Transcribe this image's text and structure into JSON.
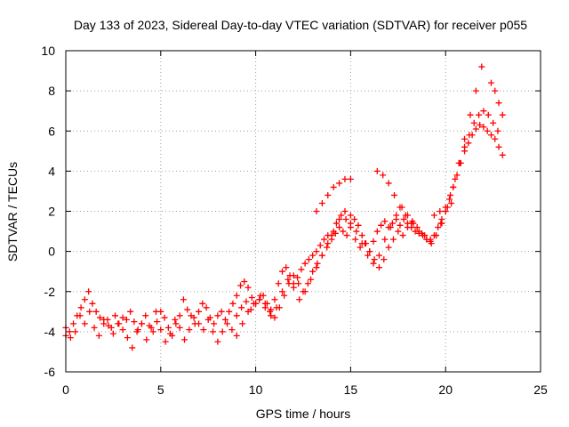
{
  "chart_data": {
    "type": "scatter",
    "title": "Day 133 of 2023, Sidereal Day-to-day VTEC variation (SDTVAR) for receiver p055",
    "xlabel": "GPS time / hours",
    "ylabel": "SDTVAR / TECUs",
    "xlim": [
      0,
      25
    ],
    "ylim": [
      -6,
      10
    ],
    "xticks": [
      "0",
      "5",
      "10",
      "15",
      "20",
      "25"
    ],
    "yticks": [
      "-6",
      "-4",
      "-2",
      "0",
      "2",
      "4",
      "6",
      "8",
      "10"
    ],
    "grid": true,
    "marker": "plus",
    "color": "#ff0000",
    "series": [
      {
        "x": [
          0.0,
          0.2,
          0.4,
          0.6,
          0.8,
          1.0,
          1.2,
          1.4,
          1.6,
          1.8,
          2.0,
          2.2,
          2.4,
          2.6,
          2.8,
          3.0,
          3.2,
          3.4,
          3.6,
          3.8,
          4.0,
          4.2,
          4.4,
          4.6,
          4.8,
          5.0,
          5.2,
          5.4,
          5.6,
          5.8,
          6.0,
          6.2,
          6.4,
          6.6,
          6.8,
          7.0,
          7.2,
          7.4,
          7.6,
          7.8,
          8.0,
          8.2,
          8.4,
          8.6,
          8.8,
          9.0,
          9.2,
          9.4,
          9.6,
          9.8,
          10.0,
          10.2,
          10.4,
          10.6,
          10.8,
          11.0,
          11.2,
          11.4,
          11.6,
          11.8,
          12.0,
          12.2,
          12.4,
          12.6,
          12.8,
          13.0,
          13.2,
          13.4,
          13.6,
          13.8,
          14.0,
          14.2,
          14.4,
          14.6,
          14.8,
          15.0,
          15.2,
          15.4,
          15.6,
          15.8,
          16.0,
          16.2,
          16.4,
          16.6,
          16.8,
          17.0,
          17.2,
          17.4,
          17.6,
          17.8,
          18.0,
          18.2,
          18.4,
          18.6,
          18.8,
          19.0,
          19.2,
          19.4,
          19.6,
          19.8,
          20.0,
          20.2,
          20.4,
          20.6,
          20.8,
          21.0,
          21.2,
          21.4,
          21.6,
          21.8,
          22.0,
          22.2,
          22.4,
          22.6,
          22.8,
          23.0
        ],
        "y": [
          -4.2,
          -4.0,
          -3.6,
          -3.2,
          -2.8,
          -2.4,
          -2.0,
          -2.6,
          -3.0,
          -3.3,
          -3.6,
          -3.4,
          -3.8,
          -3.2,
          -3.6,
          -3.9,
          -3.4,
          -3.0,
          -3.5,
          -3.9,
          -3.6,
          -3.2,
          -3.7,
          -4.0,
          -3.5,
          -3.0,
          -3.3,
          -3.8,
          -4.2,
          -3.6,
          -3.2,
          -2.4,
          -2.9,
          -3.2,
          -3.6,
          -3.0,
          -2.6,
          -2.8,
          -3.3,
          -3.6,
          -3.2,
          -3.0,
          -3.4,
          -3.0,
          -2.6,
          -2.2,
          -1.7,
          -1.5,
          -1.8,
          -2.3,
          -2.6,
          -2.4,
          -2.2,
          -2.6,
          -2.9,
          -2.4,
          -1.6,
          -1.0,
          -0.8,
          -1.2,
          -1.6,
          -1.3,
          -0.9,
          -0.6,
          -0.4,
          -0.2,
          0.0,
          0.3,
          0.6,
          0.8,
          0.6,
          0.9,
          1.2,
          1.0,
          0.8,
          1.4,
          1.6,
          1.3,
          0.8,
          0.4,
          0.0,
          0.5,
          1.0,
          1.3,
          1.5,
          1.2,
          1.4,
          1.6,
          1.3,
          1.6,
          1.4,
          1.2,
          1.0,
          0.9,
          0.8,
          0.6,
          0.5,
          0.8,
          1.2,
          1.6,
          2.0,
          2.6,
          3.2,
          3.8,
          4.4,
          5.0,
          5.4,
          5.8,
          6.1,
          6.3,
          6.2,
          6.0,
          5.8,
          5.6,
          5.2,
          4.8
        ]
      },
      {
        "x": [
          0.0,
          0.25,
          0.5,
          0.75,
          1.0,
          1.25,
          1.5,
          1.75,
          2.0,
          2.25,
          2.5,
          2.75,
          3.0,
          3.25,
          3.5,
          3.75,
          4.0,
          4.25,
          4.5,
          4.75,
          5.0,
          5.25,
          5.5,
          5.75,
          6.0,
          6.25,
          6.5,
          6.75,
          7.0,
          7.25,
          7.5,
          7.75,
          8.0,
          8.25,
          8.5,
          8.75,
          9.0,
          9.25,
          9.5,
          9.75,
          10.0,
          10.25,
          10.5,
          10.75,
          11.0,
          11.25,
          11.5,
          11.75,
          12.0,
          12.25,
          12.5,
          12.75,
          13.0,
          13.25,
          13.5,
          13.75,
          14.0,
          14.25,
          14.5,
          14.75,
          15.0,
          15.25,
          15.5,
          15.75,
          16.0,
          16.25,
          16.5,
          16.75,
          17.0,
          17.25,
          17.5,
          17.75,
          18.0,
          18.25,
          18.5,
          18.75,
          19.0,
          19.25,
          19.5,
          19.75,
          20.0,
          20.25,
          20.5,
          20.75,
          21.0,
          21.25,
          21.5,
          21.75,
          22.0,
          22.25,
          22.5,
          22.75
        ],
        "y": [
          -3.8,
          -4.3,
          -4.0,
          -3.2,
          -3.6,
          -3.0,
          -3.8,
          -4.2,
          -3.4,
          -3.7,
          -4.1,
          -3.6,
          -3.3,
          -4.3,
          -4.8,
          -4.0,
          -3.6,
          -4.4,
          -3.8,
          -3.0,
          -3.9,
          -4.5,
          -4.1,
          -3.4,
          -3.8,
          -4.4,
          -3.9,
          -3.3,
          -3.6,
          -3.9,
          -3.4,
          -4.0,
          -4.5,
          -4.0,
          -3.6,
          -3.9,
          -3.2,
          -2.8,
          -2.5,
          -2.9,
          -2.6,
          -2.2,
          -2.6,
          -3.0,
          -3.3,
          -2.8,
          -2.2,
          -1.6,
          -1.2,
          -1.6,
          -2.0,
          -1.6,
          -1.0,
          -0.6,
          -0.2,
          0.2,
          0.8,
          1.4,
          1.8,
          1.6,
          1.2,
          0.6,
          0.2,
          0.4,
          0.0,
          -0.4,
          -0.8,
          -0.4,
          0.2,
          0.6,
          1.0,
          0.8,
          1.2,
          1.5,
          1.2,
          0.9,
          0.6,
          0.4,
          0.8,
          1.4,
          2.0,
          2.8,
          3.6,
          4.4,
          5.2,
          5.8,
          6.4,
          6.8,
          7.0,
          6.8,
          6.4,
          6.0
        ]
      },
      {
        "x": [
          9.0,
          9.3,
          9.6,
          9.9,
          10.2,
          10.5,
          10.8,
          11.1,
          11.4,
          11.7,
          12.0,
          12.3,
          12.6,
          12.9,
          13.2,
          13.5,
          13.8,
          14.1,
          14.4,
          14.7,
          15.0,
          15.3,
          15.6,
          15.9,
          16.2,
          16.5,
          16.8,
          17.1,
          17.4,
          17.7,
          18.0,
          18.3,
          18.6,
          18.9,
          19.2,
          19.5,
          19.8,
          20.1,
          20.4,
          20.7,
          21.0,
          21.3,
          21.6,
          21.9
        ],
        "y": [
          -4.2,
          -3.6,
          -3.0,
          -2.6,
          -2.4,
          -2.8,
          -3.2,
          -2.8,
          -2.0,
          -1.4,
          -1.8,
          -2.4,
          -2.0,
          -1.4,
          -0.8,
          -0.2,
          0.4,
          1.0,
          1.6,
          2.0,
          1.8,
          1.0,
          0.4,
          -0.2,
          -0.6,
          -0.2,
          0.6,
          1.2,
          1.8,
          2.2,
          1.8,
          1.4,
          1.0,
          0.8,
          0.6,
          0.8,
          1.4,
          2.2,
          3.2,
          4.4,
          5.6,
          6.8,
          8.0,
          9.2
        ]
      },
      {
        "x": [
          13.2,
          13.5,
          13.8,
          14.1,
          14.4,
          14.7,
          15.0,
          16.4,
          16.7,
          17.0,
          17.3,
          17.6,
          17.9,
          18.2,
          19.4,
          19.7,
          20.0,
          20.3,
          22.4,
          22.6,
          22.8,
          23.0
        ],
        "y": [
          2.0,
          2.4,
          2.8,
          3.2,
          3.4,
          3.6,
          3.6,
          4.0,
          3.8,
          3.4,
          2.8,
          2.2,
          1.8,
          1.4,
          1.8,
          2.0,
          2.2,
          2.4,
          8.4,
          8.0,
          7.4,
          6.8
        ]
      }
    ]
  }
}
